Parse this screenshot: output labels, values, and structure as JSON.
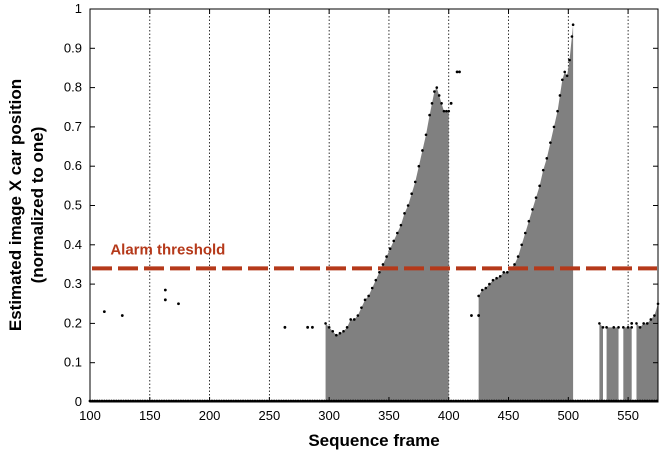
{
  "chart_data": {
    "type": "area",
    "title": "",
    "xlabel": "Sequence frame",
    "ylabel": "Estimated image X car position",
    "ylabel_sub": "(normalized to one)",
    "xlim": [
      100,
      575
    ],
    "ylim": [
      0,
      1
    ],
    "xticks": [
      100,
      150,
      200,
      250,
      300,
      350,
      400,
      450,
      500,
      550
    ],
    "yticks": [
      0,
      0.1,
      0.2,
      0.3,
      0.4,
      0.5,
      0.6,
      0.7,
      0.8,
      0.9,
      1
    ],
    "x_tick_labels": [
      "100",
      "150",
      "200",
      "250",
      "300",
      "350",
      "400",
      "450",
      "500",
      "550"
    ],
    "y_tick_labels": [
      "0",
      "0.1",
      "0.2",
      "0.3",
      "0.4",
      "0.5",
      "0.6",
      "0.7",
      "0.8",
      "0.9",
      "1"
    ],
    "vertical_gridlines": [
      150,
      200,
      250,
      300,
      350,
      400,
      450,
      500,
      550
    ],
    "threshold": {
      "label": "Alarm threshold",
      "value": 0.34,
      "color": "#b5391a"
    },
    "colors": {
      "area": "#808080",
      "points": "#000000",
      "grid": "#000000"
    },
    "filled_segments": [
      {
        "x": [
          297,
          300,
          303,
          306,
          309,
          312,
          315,
          318,
          321,
          324,
          327,
          330,
          333,
          336,
          339,
          342,
          345,
          348,
          351,
          354,
          357,
          360,
          363,
          366,
          369,
          372,
          375,
          378,
          381,
          384,
          386,
          388,
          390,
          392,
          394,
          396,
          398,
          400
        ],
        "y": [
          0.2,
          0.19,
          0.18,
          0.17,
          0.175,
          0.18,
          0.19,
          0.21,
          0.21,
          0.22,
          0.24,
          0.26,
          0.27,
          0.29,
          0.31,
          0.33,
          0.35,
          0.37,
          0.39,
          0.41,
          0.43,
          0.45,
          0.48,
          0.5,
          0.53,
          0.56,
          0.6,
          0.64,
          0.68,
          0.73,
          0.76,
          0.79,
          0.8,
          0.78,
          0.76,
          0.74,
          0.74,
          0.74
        ]
      },
      {
        "x": [
          425,
          428,
          431,
          434,
          437,
          440,
          443,
          446,
          449,
          452,
          455,
          458,
          461,
          464,
          467,
          470,
          473,
          476,
          479,
          482,
          485,
          488,
          491,
          493,
          495,
          497,
          499,
          501,
          503,
          504
        ],
        "y": [
          0.27,
          0.285,
          0.29,
          0.3,
          0.31,
          0.315,
          0.32,
          0.33,
          0.33,
          0.34,
          0.35,
          0.37,
          0.4,
          0.43,
          0.46,
          0.49,
          0.52,
          0.55,
          0.59,
          0.62,
          0.66,
          0.7,
          0.74,
          0.78,
          0.82,
          0.84,
          0.83,
          0.87,
          0.93,
          0.96
        ]
      },
      {
        "x": [
          526,
          529
        ],
        "y": [
          0.2,
          0.19
        ]
      },
      {
        "x": [
          532,
          538,
          542
        ],
        "y": [
          0.19,
          0.19,
          0.19
        ]
      },
      {
        "x": [
          546,
          550,
          553
        ],
        "y": [
          0.19,
          0.19,
          0.19
        ]
      },
      {
        "x": [
          557,
          560,
          563,
          566,
          569,
          572,
          575
        ],
        "y": [
          0.2,
          0.19,
          0.2,
          0.2,
          0.21,
          0.22,
          0.25
        ]
      }
    ],
    "scatter_points": [
      {
        "x": 112,
        "y": 0.23
      },
      {
        "x": 127,
        "y": 0.22
      },
      {
        "x": 163,
        "y": 0.285
      },
      {
        "x": 163,
        "y": 0.26
      },
      {
        "x": 174,
        "y": 0.25
      },
      {
        "x": 263,
        "y": 0.19
      },
      {
        "x": 282,
        "y": 0.19
      },
      {
        "x": 286,
        "y": 0.19
      },
      {
        "x": 402,
        "y": 0.76
      },
      {
        "x": 407,
        "y": 0.84
      },
      {
        "x": 409,
        "y": 0.84
      },
      {
        "x": 419,
        "y": 0.22
      },
      {
        "x": 425,
        "y": 0.22
      },
      {
        "x": 553,
        "y": 0.2
      }
    ],
    "zero_points": {
      "from": 100,
      "to": 575,
      "step": 2
    }
  }
}
